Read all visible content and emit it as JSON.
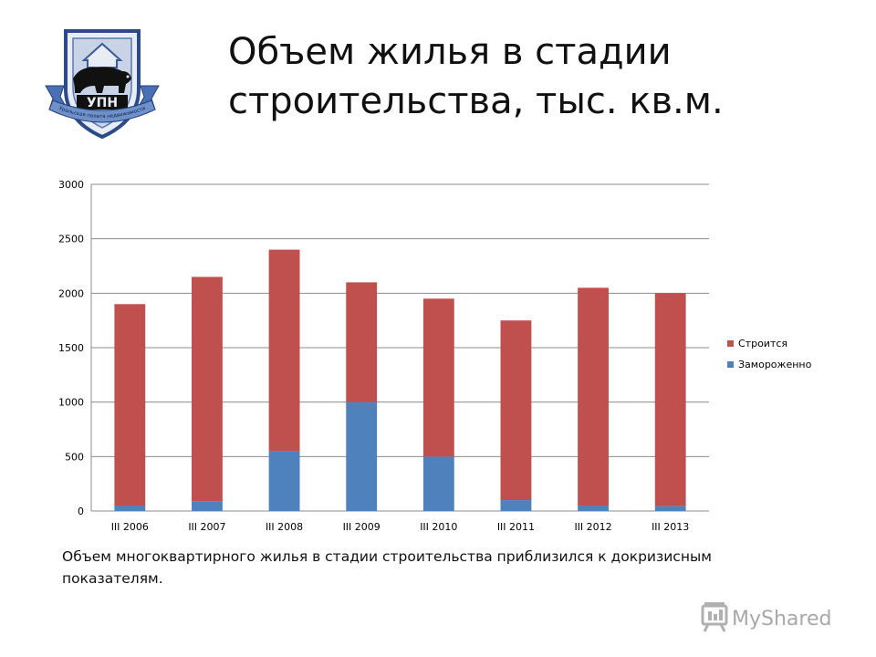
{
  "slide": {
    "title": "Объем жилья в стадии строительства, тыс. кв.м.",
    "caption": "Объем многоквартирного жилья в стадии строительства приблизился к докризисным показателям."
  },
  "logo": {
    "text": "УПН",
    "ribbon_text": "Уральская палата недвижимости",
    "icon": "bear-house-shield-logo"
  },
  "watermark": {
    "text": "MyShared",
    "icon": "presentation-board-icon"
  },
  "chart_data": {
    "type": "bar",
    "stacked": true,
    "categories": [
      "III 2006",
      "III 2007",
      "III 2008",
      "III 2009",
      "III 2010",
      "III 2011",
      "III 2012",
      "III 2013"
    ],
    "series": [
      {
        "name": "Замороженно",
        "color": "#4f81bd",
        "values": [
          50,
          90,
          550,
          1000,
          500,
          100,
          50,
          45
        ]
      },
      {
        "name": "Строится",
        "color": "#c0504d",
        "values": [
          1850,
          2060,
          1850,
          1100,
          1450,
          1650,
          2000,
          1955
        ]
      }
    ],
    "ylim": [
      0,
      3000
    ],
    "yticks": [
      0,
      500,
      1000,
      1500,
      2000,
      2500,
      3000
    ],
    "grid": true,
    "legend_position": "right",
    "legend_order": [
      "Строится",
      "Замороженно"
    ],
    "title": "",
    "xlabel": "",
    "ylabel": ""
  }
}
